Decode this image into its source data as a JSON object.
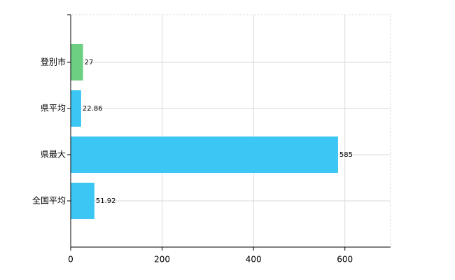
{
  "chart_data": {
    "type": "hbar",
    "categories": [
      "登別市",
      "県平均",
      "県最大",
      "全国平均"
    ],
    "values": [
      27,
      22.86,
      585,
      51.92
    ],
    "colors": [
      "#6dcf80",
      "#3cc6f4",
      "#3cc6f4",
      "#3cc6f4"
    ],
    "xlim": [
      0,
      700
    ],
    "xticks": [
      0,
      200,
      400,
      600
    ],
    "grid": true
  }
}
